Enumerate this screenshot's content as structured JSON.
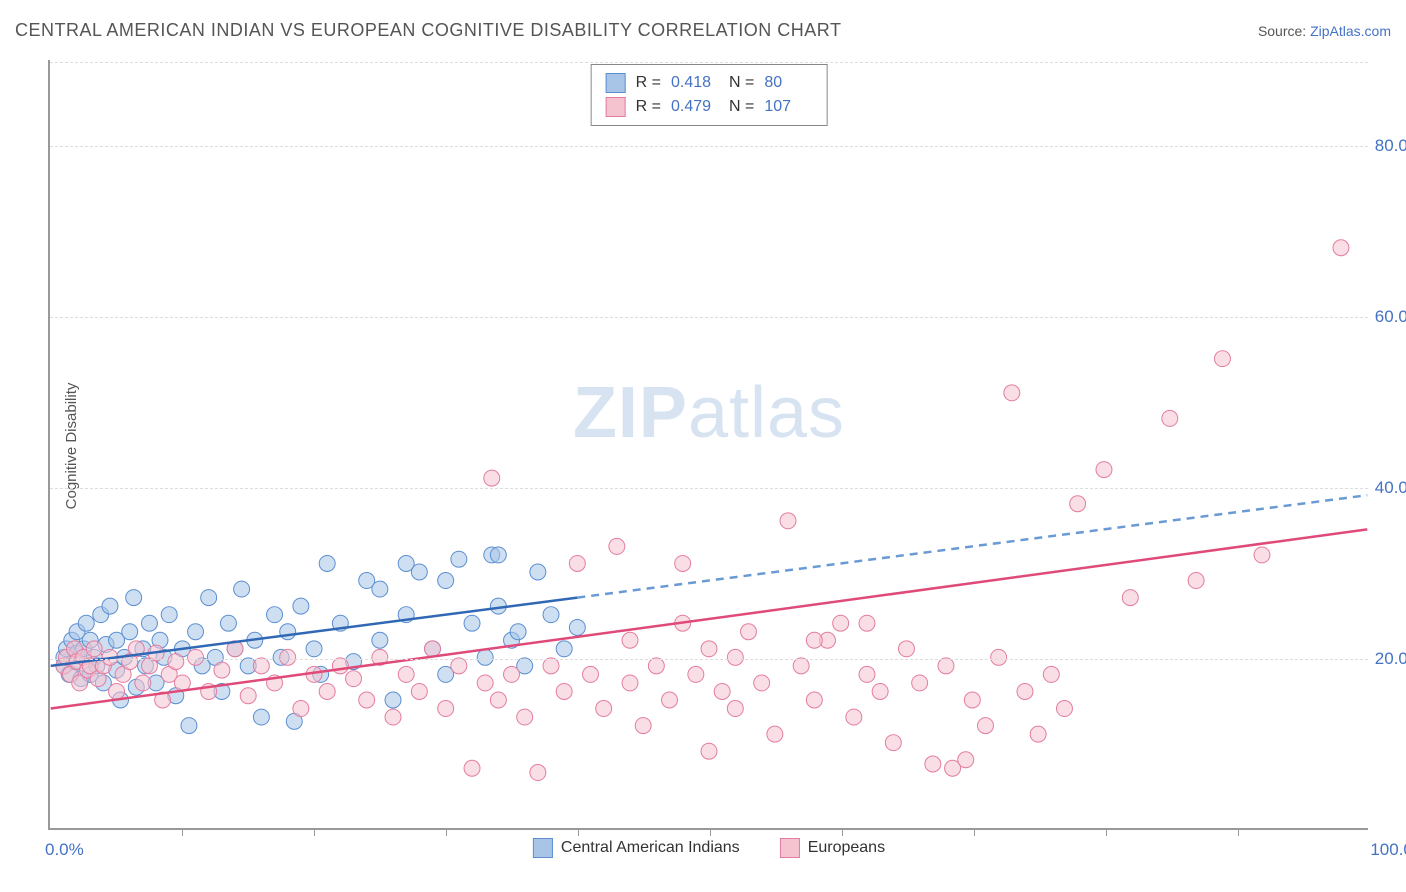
{
  "title": "CENTRAL AMERICAN INDIAN VS EUROPEAN COGNITIVE DISABILITY CORRELATION CHART",
  "source_label": "Source: ",
  "source_link": "ZipAtlas.com",
  "y_axis_label": "Cognitive Disability",
  "watermark_zip": "ZIP",
  "watermark_atlas": "atlas",
  "chart": {
    "type": "scatter",
    "xlim": [
      0,
      100
    ],
    "ylim": [
      0,
      90
    ],
    "x_tick_step": 10,
    "y_ticks": [
      20,
      40,
      60,
      80
    ],
    "y_tick_labels": [
      "20.0%",
      "40.0%",
      "60.0%",
      "80.0%"
    ],
    "x_min_label": "0.0%",
    "x_max_label": "100.0%",
    "grid_color": "#dddddd",
    "axis_color": "#999999",
    "background_color": "#ffffff",
    "marker_radius": 8,
    "marker_opacity": 0.55,
    "series": [
      {
        "name": "Central American Indians",
        "fill": "#a8c5e8",
        "stroke": "#5b8fd1",
        "R": "0.418",
        "N": "80",
        "trend": {
          "x1": 0,
          "y1": 19,
          "x2_solid": 40,
          "y2_solid": 27,
          "x2_dash": 100,
          "y2_dash": 39,
          "solid_color": "#3168b5",
          "dash_color": "#6a9ad4",
          "width": 2.5
        },
        "points": [
          [
            1,
            19
          ],
          [
            1,
            20
          ],
          [
            1.2,
            21
          ],
          [
            1.4,
            18
          ],
          [
            1.6,
            22
          ],
          [
            1.8,
            19.5
          ],
          [
            2,
            20.5
          ],
          [
            2,
            23
          ],
          [
            2.3,
            17.5
          ],
          [
            2.5,
            21
          ],
          [
            2.7,
            24
          ],
          [
            3,
            18
          ],
          [
            3,
            22
          ],
          [
            3.3,
            20
          ],
          [
            3.5,
            19
          ],
          [
            3.8,
            25
          ],
          [
            4,
            17
          ],
          [
            4.2,
            21.5
          ],
          [
            4.5,
            26
          ],
          [
            5,
            18.5
          ],
          [
            5,
            22
          ],
          [
            5.3,
            15
          ],
          [
            5.6,
            20
          ],
          [
            6,
            23
          ],
          [
            6.3,
            27
          ],
          [
            6.5,
            16.5
          ],
          [
            7,
            21
          ],
          [
            7.2,
            19
          ],
          [
            7.5,
            24
          ],
          [
            8,
            17
          ],
          [
            8.3,
            22
          ],
          [
            8.6,
            20
          ],
          [
            9,
            25
          ],
          [
            9.5,
            15.5
          ],
          [
            10,
            21
          ],
          [
            10.5,
            12
          ],
          [
            11,
            23
          ],
          [
            11.5,
            19
          ],
          [
            12,
            27
          ],
          [
            12.5,
            20
          ],
          [
            13,
            16
          ],
          [
            13.5,
            24
          ],
          [
            14,
            21
          ],
          [
            14.5,
            28
          ],
          [
            15,
            19
          ],
          [
            15.5,
            22
          ],
          [
            16,
            13
          ],
          [
            17,
            25
          ],
          [
            17.5,
            20
          ],
          [
            18,
            23
          ],
          [
            18.5,
            12.5
          ],
          [
            19,
            26
          ],
          [
            20,
            21
          ],
          [
            20.5,
            18
          ],
          [
            21,
            31
          ],
          [
            22,
            24
          ],
          [
            23,
            19.5
          ],
          [
            24,
            29
          ],
          [
            25,
            22
          ],
          [
            26,
            15
          ],
          [
            27,
            25
          ],
          [
            28,
            30
          ],
          [
            29,
            21
          ],
          [
            30,
            18
          ],
          [
            31,
            31.5
          ],
          [
            32,
            24
          ],
          [
            33,
            20
          ],
          [
            33.5,
            32
          ],
          [
            34,
            26
          ],
          [
            35,
            22
          ],
          [
            35.5,
            23
          ],
          [
            36,
            19
          ],
          [
            37,
            30
          ],
          [
            38,
            25
          ],
          [
            39,
            21
          ],
          [
            40,
            23.5
          ],
          [
            34,
            32
          ],
          [
            30,
            29
          ],
          [
            27,
            31
          ],
          [
            25,
            28
          ]
        ]
      },
      {
        "name": "Europeans",
        "fill": "#f5c3cf",
        "stroke": "#e37da0",
        "R": "0.479",
        "N": "107",
        "trend": {
          "x1": 0,
          "y1": 14,
          "x2_solid": 100,
          "y2_solid": 35,
          "solid_color": "#e04a79",
          "width": 2.5
        },
        "points": [
          [
            1,
            19
          ],
          [
            1.2,
            20
          ],
          [
            1.5,
            18
          ],
          [
            1.8,
            21
          ],
          [
            2,
            19.5
          ],
          [
            2.2,
            17
          ],
          [
            2.5,
            20
          ],
          [
            2.8,
            18.5
          ],
          [
            3,
            19
          ],
          [
            3.3,
            21
          ],
          [
            3.6,
            17.5
          ],
          [
            4,
            19
          ],
          [
            4.5,
            20
          ],
          [
            5,
            16
          ],
          [
            5.5,
            18
          ],
          [
            6,
            19.5
          ],
          [
            6.5,
            21
          ],
          [
            7,
            17
          ],
          [
            7.5,
            19
          ],
          [
            8,
            20.5
          ],
          [
            8.5,
            15
          ],
          [
            9,
            18
          ],
          [
            9.5,
            19.5
          ],
          [
            10,
            17
          ],
          [
            11,
            20
          ],
          [
            12,
            16
          ],
          [
            13,
            18.5
          ],
          [
            14,
            21
          ],
          [
            15,
            15.5
          ],
          [
            16,
            19
          ],
          [
            17,
            17
          ],
          [
            18,
            20
          ],
          [
            19,
            14
          ],
          [
            20,
            18
          ],
          [
            21,
            16
          ],
          [
            22,
            19
          ],
          [
            23,
            17.5
          ],
          [
            24,
            15
          ],
          [
            25,
            20
          ],
          [
            26,
            13
          ],
          [
            27,
            18
          ],
          [
            28,
            16
          ],
          [
            29,
            21
          ],
          [
            30,
            14
          ],
          [
            31,
            19
          ],
          [
            32,
            7
          ],
          [
            33,
            17
          ],
          [
            33.5,
            41
          ],
          [
            34,
            15
          ],
          [
            35,
            18
          ],
          [
            36,
            13
          ],
          [
            37,
            6.5
          ],
          [
            38,
            19
          ],
          [
            39,
            16
          ],
          [
            40,
            31
          ],
          [
            41,
            18
          ],
          [
            42,
            14
          ],
          [
            43,
            33
          ],
          [
            44,
            17
          ],
          [
            45,
            12
          ],
          [
            46,
            19
          ],
          [
            47,
            15
          ],
          [
            48,
            31
          ],
          [
            49,
            18
          ],
          [
            50,
            21
          ],
          [
            51,
            16
          ],
          [
            52,
            14
          ],
          [
            53,
            23
          ],
          [
            54,
            17
          ],
          [
            55,
            11
          ],
          [
            56,
            36
          ],
          [
            57,
            19
          ],
          [
            58,
            15
          ],
          [
            59,
            22
          ],
          [
            60,
            24
          ],
          [
            61,
            13
          ],
          [
            62,
            18
          ],
          [
            63,
            16
          ],
          [
            64,
            10
          ],
          [
            65,
            21
          ],
          [
            66,
            17
          ],
          [
            67,
            7.5
          ],
          [
            68,
            19
          ],
          [
            68.5,
            7
          ],
          [
            69.5,
            8
          ],
          [
            70,
            15
          ],
          [
            71,
            12
          ],
          [
            72,
            20
          ],
          [
            73,
            51
          ],
          [
            74,
            16
          ],
          [
            75,
            11
          ],
          [
            76,
            18
          ],
          [
            77,
            14
          ],
          [
            78,
            38
          ],
          [
            80,
            42
          ],
          [
            82,
            27
          ],
          [
            85,
            48
          ],
          [
            87,
            29
          ],
          [
            89,
            55
          ],
          [
            92,
            32
          ],
          [
            98,
            68
          ],
          [
            62,
            24
          ],
          [
            58,
            22
          ],
          [
            50,
            9
          ],
          [
            44,
            22
          ],
          [
            48,
            24
          ],
          [
            52,
            20
          ]
        ]
      }
    ]
  },
  "legend_labels": {
    "cai": "Central American Indians",
    "eur": "Europeans"
  },
  "stat_labels": {
    "R": "R =",
    "N": "N ="
  }
}
